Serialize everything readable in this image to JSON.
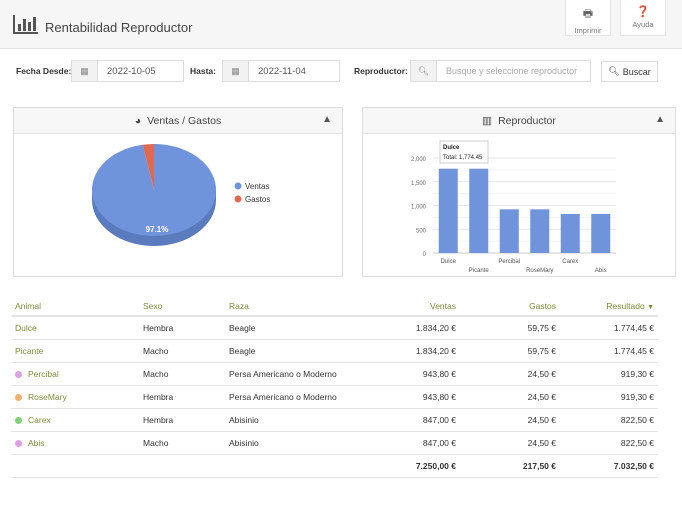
{
  "header": {
    "title": "Rentabilidad Reproductor",
    "print_label": "Imprimir",
    "help_label": "Ayuda"
  },
  "filters": {
    "from_label": "Fecha Desde:",
    "from_value": "2022-10-05",
    "to_label": "Hasta:",
    "to_value": "2022-11-04",
    "breeder_label": "Reproductor:",
    "breeder_placeholder": "Busque y seleccione reproductor",
    "search_label": "Buscar"
  },
  "pie_panel": {
    "title": "Ventas / Gastos"
  },
  "bar_panel": {
    "title": "Reproductor",
    "tooltip_title": "Dulce",
    "tooltip_value": "Total: 1,774.45"
  },
  "chart_data": [
    {
      "type": "pie",
      "labels": [
        "Ventas",
        "Gastos"
      ],
      "values": [
        97.1,
        2.9
      ],
      "colors": [
        "#6f94dc",
        "#e0694f"
      ],
      "data_label": "97.1%",
      "legend": "right"
    },
    {
      "type": "bar",
      "categories": [
        "Dulce",
        "Picante",
        "Percibal",
        "RoseMary",
        "Carex",
        "Abis"
      ],
      "values": [
        1774.45,
        1774.45,
        919.3,
        919.3,
        822.5,
        822.5
      ],
      "yticks": [
        "0",
        "500",
        "1,000",
        "1,500",
        "2,000"
      ],
      "ylim": [
        0,
        2000
      ],
      "color": "#6f94dc",
      "grid": true
    }
  ],
  "table": {
    "headers": {
      "animal": "Animal",
      "sexo": "Sexo",
      "raza": "Raza",
      "ventas": "Ventas",
      "gastos": "Gastos",
      "resultado": "Resultado"
    },
    "rows": [
      {
        "animal": "Dulce",
        "dot": "",
        "sexo": "Hembra",
        "raza": "Beagle",
        "ventas": "1.834,20 €",
        "gastos": "59,75 €",
        "resultado": "1.774,45 €"
      },
      {
        "animal": "Picante",
        "dot": "",
        "sexo": "Macho",
        "raza": "Beagle",
        "ventas": "1.834,20 €",
        "gastos": "59,75 €",
        "resultado": "1.774,45 €"
      },
      {
        "animal": "Percibal",
        "dot": "#dda0e8",
        "sexo": "Macho",
        "raza": "Persa Americano o Moderno",
        "ventas": "943,80 €",
        "gastos": "24,50 €",
        "resultado": "919,30 €"
      },
      {
        "animal": "RoseMary",
        "dot": "#f5b070",
        "sexo": "Hembra",
        "raza": "Persa Americano o Moderno",
        "ventas": "943,80 €",
        "gastos": "24,50 €",
        "resultado": "919,30 €"
      },
      {
        "animal": "Carex",
        "dot": "#7fd07a",
        "sexo": "Hembra",
        "raza": "Abisinio",
        "ventas": "847,00 €",
        "gastos": "24,50 €",
        "resultado": "822,50 €"
      },
      {
        "animal": "Abis",
        "dot": "#dda0e8",
        "sexo": "Macho",
        "raza": "Abisinio",
        "ventas": "847,00 €",
        "gastos": "24,50 €",
        "resultado": "822,50 €"
      }
    ],
    "totals": {
      "ventas": "7.250,00 €",
      "gastos": "217,50 €",
      "resultado": "7.032,50 €"
    }
  }
}
